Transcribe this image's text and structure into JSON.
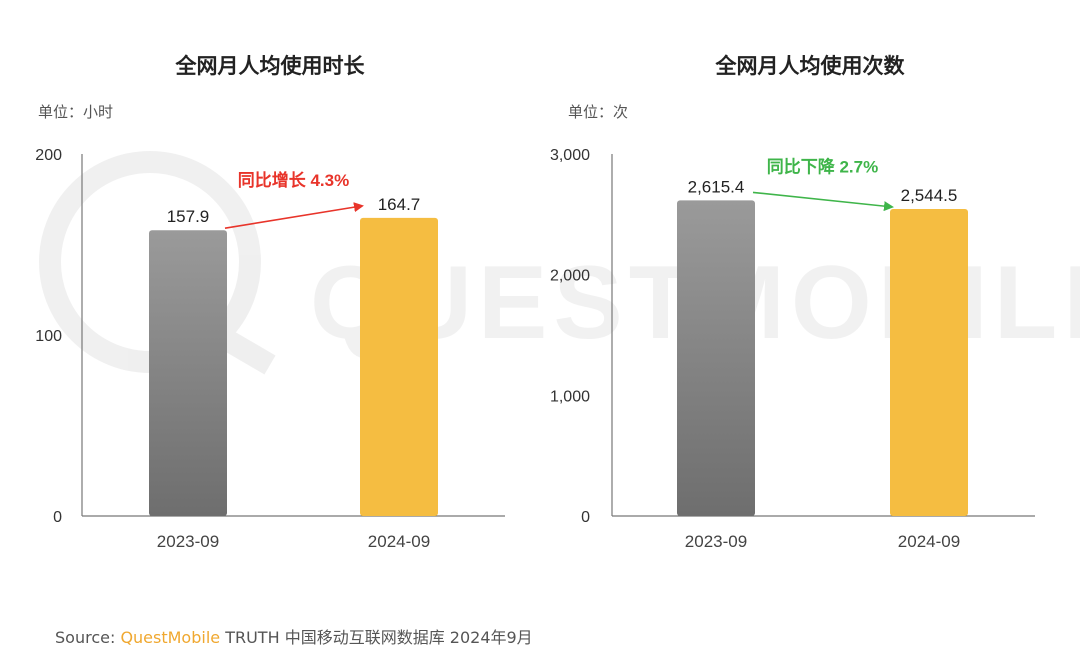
{
  "source": {
    "prefix": "Source: ",
    "brand": "QuestMobile",
    "rest": " TRUTH 中国移动互联网数据库 2024年9月"
  },
  "watermark_text": "QUESTMOBILE",
  "colors": {
    "bar_2023": "#8a8a8a",
    "bar_2024": "#f5bd41",
    "increase": "#e8342a",
    "decrease": "#3fb54a"
  },
  "chart_data": [
    {
      "type": "bar",
      "title": "全网月人均使用时长",
      "unit": "单位：小时",
      "categories": [
        "2023-09",
        "2024-09"
      ],
      "values": [
        157.9,
        164.7
      ],
      "value_labels": [
        "157.9",
        "164.7"
      ],
      "ylim": [
        0,
        200
      ],
      "yticks": [
        0,
        100,
        200
      ],
      "ytick_labels": [
        "0",
        "100",
        "200"
      ],
      "annotation": {
        "text": "同比增长 4.3%",
        "direction": "up"
      }
    },
    {
      "type": "bar",
      "title": "全网月人均使用次数",
      "unit": "单位：次",
      "categories": [
        "2023-09",
        "2024-09"
      ],
      "values": [
        2615.4,
        2544.5
      ],
      "value_labels": [
        "2,615.4",
        "2,544.5"
      ],
      "ylim": [
        0,
        3000
      ],
      "yticks": [
        0,
        1000,
        2000,
        3000
      ],
      "ytick_labels": [
        "0",
        "1,000",
        "2,000",
        "3,000"
      ],
      "annotation": {
        "text": "同比下降 2.7%",
        "direction": "down"
      }
    }
  ]
}
